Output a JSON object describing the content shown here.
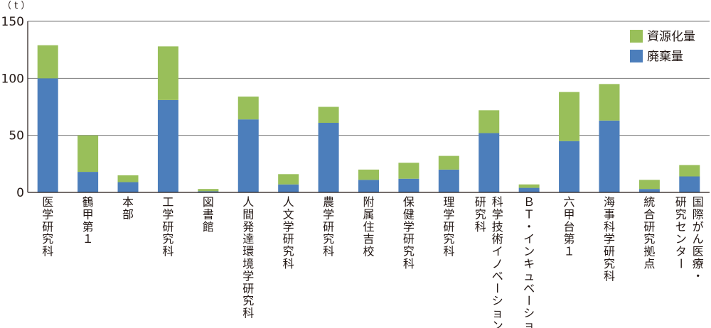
{
  "chart_data": {
    "type": "bar",
    "stacked": true,
    "unit_label": "（ t ）",
    "ylim": [
      0,
      150
    ],
    "yticks": [
      0,
      50,
      100,
      150
    ],
    "grid": true,
    "legend_position": "top-right",
    "colors": {
      "資源化量": "#99bf5a",
      "廃棄量": "#4c7ebb"
    },
    "categories": [
      [
        "医学研究科"
      ],
      [
        "鶴甲第１"
      ],
      [
        "本部"
      ],
      [
        "工学研究科"
      ],
      [
        "図書館"
      ],
      [
        "人間発達環境学研究科"
      ],
      [
        "人文学研究科"
      ],
      [
        "農学研究科"
      ],
      [
        "附属住吉校"
      ],
      [
        "保健学研究科"
      ],
      [
        "理学研究科"
      ],
      [
        "科学技術イノベーション",
        "研究科"
      ],
      [
        "ＢＴ・インキュベーション"
      ],
      [
        "六甲台第１"
      ],
      [
        "海事科学研究科"
      ],
      [
        "統合研究拠点"
      ],
      [
        "国際がん医療・",
        "研究センター"
      ]
    ],
    "series": [
      {
        "name": "廃棄量",
        "values": [
          100,
          18,
          9,
          81,
          1,
          64,
          7,
          61,
          11,
          12,
          20,
          52,
          4,
          45,
          63,
          3,
          14
        ]
      },
      {
        "name": "資源化量",
        "values": [
          29,
          32,
          6,
          47,
          2,
          20,
          9,
          14,
          9,
          14,
          12,
          20,
          3,
          43,
          32,
          8,
          10
        ]
      }
    ],
    "legend": [
      "資源化量",
      "廃棄量"
    ]
  }
}
